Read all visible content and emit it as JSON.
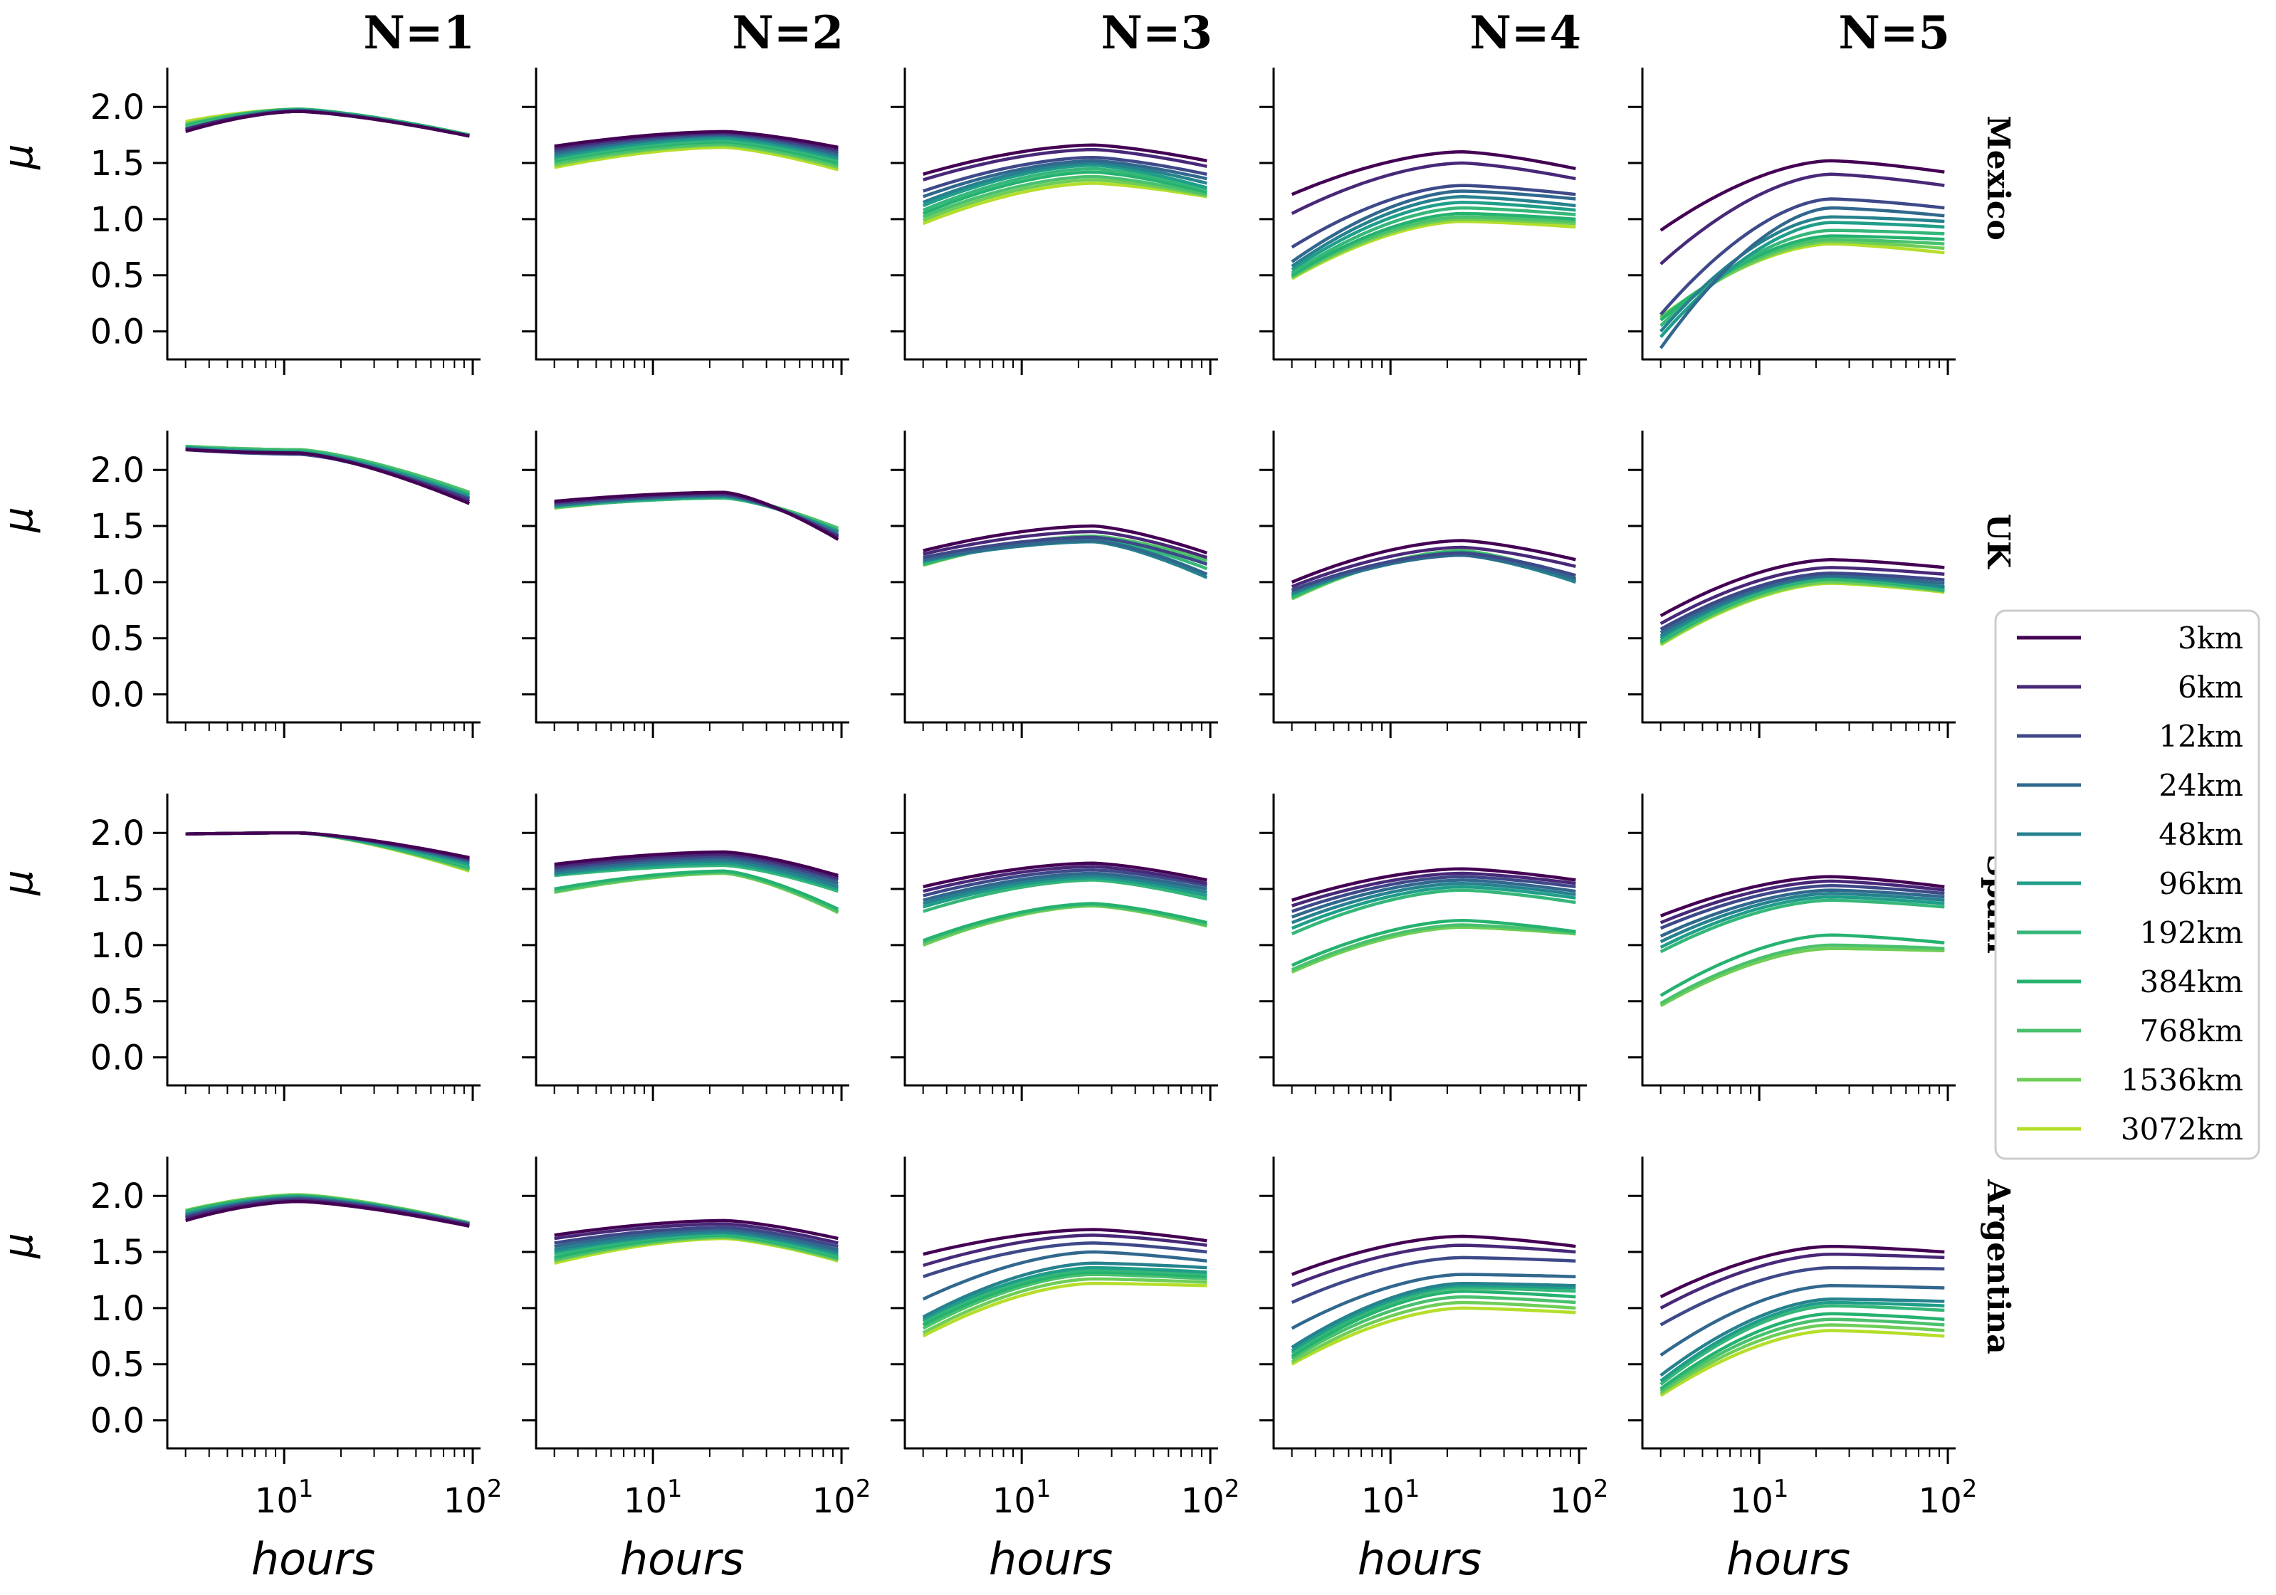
{
  "chart_data": {
    "type": "line",
    "layout": "small-multiples-grid",
    "columns": [
      "N=1",
      "N=2",
      "N=3",
      "N=4",
      "N=5"
    ],
    "rows": [
      "Mexico",
      "UK",
      "Spain",
      "Argentina"
    ],
    "xlabel": "hours",
    "ylabel": "μ",
    "xscale": "log",
    "xlim": [
      2.4,
      110
    ],
    "ylim": [
      -0.25,
      2.35
    ],
    "x": [
      3,
      6,
      12,
      24,
      48,
      96
    ],
    "xticks": [
      {
        "value": 10,
        "base": "10",
        "exp": "1"
      },
      {
        "value": 100,
        "base": "10",
        "exp": "2"
      }
    ],
    "yticks": [
      0.0,
      0.5,
      1.0,
      1.5,
      2.0
    ],
    "ytick_labels": [
      "0.0",
      "0.5",
      "1.0",
      "1.5",
      "2.0"
    ],
    "grid": false,
    "legend_position": "right",
    "series_names": [
      "3km",
      "6km",
      "12km",
      "24km",
      "48km",
      "96km",
      "192km",
      "384km",
      "768km",
      "1536km",
      "3072km"
    ],
    "series_colors": [
      "#440154",
      "#482878",
      "#3e4989",
      "#31688e",
      "#26828e",
      "#1f9e89",
      "#35b779",
      "#25b26f",
      "#4ac16d",
      "#6ece58",
      "#b5de2b"
    ],
    "panel_start": [
      [
        [
          1.78,
          1.8,
          1.8,
          1.8,
          1.8,
          1.8,
          1.82,
          1.83,
          1.84,
          1.85,
          1.87
        ],
        [
          1.65,
          1.63,
          1.61,
          1.59,
          1.57,
          1.55,
          1.53,
          1.52,
          1.5,
          1.48,
          1.46
        ],
        [
          1.4,
          1.35,
          1.25,
          1.2,
          1.15,
          1.12,
          1.08,
          1.05,
          1.02,
          0.99,
          0.96
        ],
        [
          1.22,
          1.05,
          0.75,
          0.62,
          0.58,
          0.55,
          0.52,
          0.5,
          0.49,
          0.48,
          0.47
        ],
        [
          0.9,
          0.6,
          0.15,
          -0.15,
          0.0,
          -0.05,
          0.05,
          0.1,
          0.12,
          0.1,
          0.13
        ]
      ],
      [
        [
          2.18,
          2.18,
          2.18,
          2.19,
          2.19,
          2.2,
          2.2,
          2.2,
          2.21,
          2.21,
          2.21
        ],
        [
          1.72,
          1.71,
          1.7,
          1.69,
          1.68,
          1.68,
          1.67,
          1.67,
          1.67,
          1.66,
          1.66
        ],
        [
          1.28,
          1.25,
          1.22,
          1.2,
          1.19,
          1.18,
          1.17,
          1.16,
          1.16,
          1.15,
          1.15
        ],
        [
          1.0,
          0.96,
          0.93,
          0.92,
          0.9,
          0.89,
          0.88,
          0.87,
          0.86,
          0.85,
          0.85
        ],
        [
          0.7,
          0.63,
          0.58,
          0.55,
          0.52,
          0.5,
          0.48,
          0.47,
          0.46,
          0.45,
          0.44
        ]
      ],
      [
        [
          1.99,
          1.99,
          1.99,
          1.99,
          1.99,
          1.99,
          1.99,
          1.99,
          1.99,
          1.99,
          1.99
        ],
        [
          1.72,
          1.7,
          1.68,
          1.66,
          1.64,
          1.63,
          1.62,
          1.5,
          1.48,
          1.47,
          1.47
        ],
        [
          1.52,
          1.48,
          1.44,
          1.4,
          1.37,
          1.34,
          1.3,
          1.04,
          1.02,
          1.0,
          1.0
        ],
        [
          1.4,
          1.35,
          1.3,
          1.25,
          1.2,
          1.15,
          1.1,
          0.82,
          0.78,
          0.76,
          0.76
        ],
        [
          1.26,
          1.2,
          1.15,
          1.08,
          1.03,
          0.98,
          0.94,
          0.55,
          0.48,
          0.46,
          0.46
        ]
      ],
      [
        [
          1.78,
          1.8,
          1.81,
          1.82,
          1.83,
          1.84,
          1.85,
          1.86,
          1.86,
          1.87,
          1.87
        ],
        [
          1.65,
          1.62,
          1.58,
          1.55,
          1.52,
          1.5,
          1.48,
          1.45,
          1.43,
          1.42,
          1.4
        ],
        [
          1.48,
          1.38,
          1.28,
          1.08,
          0.92,
          0.9,
          0.88,
          0.85,
          0.82,
          0.78,
          0.75
        ],
        [
          1.3,
          1.2,
          1.05,
          0.82,
          0.65,
          0.62,
          0.6,
          0.57,
          0.55,
          0.52,
          0.5
        ],
        [
          1.1,
          1.0,
          0.85,
          0.58,
          0.4,
          0.35,
          0.32,
          0.28,
          0.26,
          0.24,
          0.22
        ]
      ]
    ],
    "panel_peak": [
      [
        [
          1.96,
          1.96,
          1.96,
          1.97,
          1.97,
          1.97,
          1.97,
          1.98,
          1.98,
          1.98,
          1.98
        ],
        [
          1.78,
          1.77,
          1.76,
          1.75,
          1.74,
          1.72,
          1.7,
          1.69,
          1.67,
          1.66,
          1.64
        ],
        [
          1.66,
          1.62,
          1.55,
          1.52,
          1.5,
          1.48,
          1.45,
          1.42,
          1.38,
          1.35,
          1.32
        ],
        [
          1.6,
          1.5,
          1.3,
          1.25,
          1.2,
          1.15,
          1.1,
          1.05,
          1.02,
          1.0,
          0.98
        ],
        [
          1.52,
          1.4,
          1.18,
          1.1,
          1.02,
          0.97,
          0.9,
          0.85,
          0.82,
          0.8,
          0.78
        ]
      ],
      [
        [
          2.15,
          2.15,
          2.14,
          2.14,
          2.15,
          2.16,
          2.17,
          2.17,
          2.18,
          2.18,
          2.18
        ],
        [
          1.8,
          1.79,
          1.78,
          1.77,
          1.77,
          1.76,
          1.75,
          1.75,
          1.76,
          1.76,
          1.76
        ],
        [
          1.5,
          1.45,
          1.4,
          1.37,
          1.36,
          1.38,
          1.39,
          1.4,
          1.41,
          1.41,
          1.41
        ],
        [
          1.37,
          1.31,
          1.26,
          1.24,
          1.24,
          1.25,
          1.26,
          1.27,
          1.28,
          1.28,
          1.28
        ],
        [
          1.2,
          1.13,
          1.08,
          1.06,
          1.05,
          1.05,
          1.04,
          1.03,
          1.02,
          1.0,
          0.99
        ]
      ],
      [
        [
          2.0,
          2.0,
          2.0,
          2.0,
          2.0,
          2.0,
          2.0,
          2.0,
          2.0,
          2.0,
          2.0
        ],
        [
          1.83,
          1.81,
          1.79,
          1.77,
          1.75,
          1.73,
          1.71,
          1.66,
          1.65,
          1.64,
          1.64
        ],
        [
          1.73,
          1.7,
          1.67,
          1.64,
          1.62,
          1.6,
          1.58,
          1.37,
          1.36,
          1.35,
          1.35
        ],
        [
          1.68,
          1.64,
          1.61,
          1.58,
          1.55,
          1.52,
          1.49,
          1.22,
          1.18,
          1.16,
          1.16
        ],
        [
          1.61,
          1.57,
          1.53,
          1.49,
          1.46,
          1.43,
          1.4,
          1.09,
          1.0,
          0.97,
          0.97
        ]
      ],
      [
        [
          1.95,
          1.96,
          1.97,
          1.98,
          1.98,
          1.99,
          1.99,
          2.0,
          2.0,
          2.01,
          2.01
        ],
        [
          1.78,
          1.75,
          1.72,
          1.7,
          1.68,
          1.67,
          1.66,
          1.65,
          1.64,
          1.63,
          1.62
        ],
        [
          1.7,
          1.65,
          1.58,
          1.5,
          1.4,
          1.36,
          1.34,
          1.32,
          1.3,
          1.26,
          1.22
        ],
        [
          1.64,
          1.56,
          1.45,
          1.3,
          1.22,
          1.2,
          1.18,
          1.15,
          1.1,
          1.05,
          1.0
        ],
        [
          1.55,
          1.48,
          1.36,
          1.2,
          1.08,
          1.05,
          1.02,
          0.95,
          0.9,
          0.85,
          0.8
        ]
      ]
    ],
    "panel_end": [
      [
        [
          1.74,
          1.74,
          1.74,
          1.74,
          1.74,
          1.74,
          1.74,
          1.75,
          1.75,
          1.75,
          1.75
        ],
        [
          1.64,
          1.62,
          1.6,
          1.58,
          1.56,
          1.54,
          1.52,
          1.5,
          1.48,
          1.46,
          1.44
        ],
        [
          1.52,
          1.47,
          1.4,
          1.36,
          1.32,
          1.28,
          1.26,
          1.24,
          1.22,
          1.21,
          1.2
        ],
        [
          1.45,
          1.36,
          1.22,
          1.18,
          1.12,
          1.08,
          1.04,
          1.0,
          0.98,
          0.96,
          0.93
        ],
        [
          1.42,
          1.3,
          1.1,
          1.03,
          0.98,
          0.93,
          0.87,
          0.82,
          0.78,
          0.74,
          0.7
        ]
      ],
      [
        [
          1.7,
          1.72,
          1.74,
          1.74,
          1.75,
          1.77,
          1.78,
          1.78,
          1.8,
          1.8,
          1.8
        ],
        [
          1.38,
          1.4,
          1.41,
          1.42,
          1.44,
          1.45,
          1.46,
          1.46,
          1.48,
          1.48,
          1.48
        ],
        [
          1.26,
          1.22,
          1.16,
          1.07,
          1.04,
          1.07,
          1.12,
          1.16,
          1.19,
          1.2,
          1.2
        ],
        [
          1.2,
          1.14,
          1.06,
          1.03,
          1.0,
          1.0,
          1.01,
          1.02,
          1.03,
          1.03,
          1.03
        ],
        [
          1.13,
          1.07,
          1.02,
          0.99,
          0.96,
          0.95,
          0.94,
          0.93,
          0.92,
          0.92,
          0.91
        ]
      ],
      [
        [
          1.78,
          1.77,
          1.76,
          1.75,
          1.74,
          1.72,
          1.7,
          1.69,
          1.68,
          1.67,
          1.66
        ],
        [
          1.62,
          1.6,
          1.58,
          1.55,
          1.52,
          1.5,
          1.48,
          1.32,
          1.3,
          1.29,
          1.29
        ],
        [
          1.58,
          1.55,
          1.53,
          1.5,
          1.47,
          1.44,
          1.41,
          1.2,
          1.18,
          1.17,
          1.17
        ],
        [
          1.58,
          1.55,
          1.52,
          1.48,
          1.45,
          1.42,
          1.38,
          1.12,
          1.11,
          1.1,
          1.1
        ],
        [
          1.52,
          1.49,
          1.46,
          1.43,
          1.4,
          1.37,
          1.34,
          1.02,
          0.97,
          0.95,
          0.95
        ]
      ],
      [
        [
          1.73,
          1.74,
          1.74,
          1.75,
          1.75,
          1.75,
          1.75,
          1.75,
          1.76,
          1.76,
          1.76
        ],
        [
          1.62,
          1.58,
          1.55,
          1.52,
          1.5,
          1.48,
          1.46,
          1.45,
          1.44,
          1.43,
          1.42
        ],
        [
          1.6,
          1.56,
          1.5,
          1.42,
          1.36,
          1.32,
          1.3,
          1.28,
          1.26,
          1.23,
          1.2
        ],
        [
          1.55,
          1.5,
          1.42,
          1.28,
          1.2,
          1.18,
          1.15,
          1.1,
          1.05,
          1.0,
          0.96
        ],
        [
          1.5,
          1.45,
          1.35,
          1.18,
          1.06,
          1.02,
          0.98,
          0.9,
          0.85,
          0.8,
          0.75
        ]
      ]
    ],
    "peak_hours": [
      12,
      24,
      24,
      24,
      24
    ]
  }
}
